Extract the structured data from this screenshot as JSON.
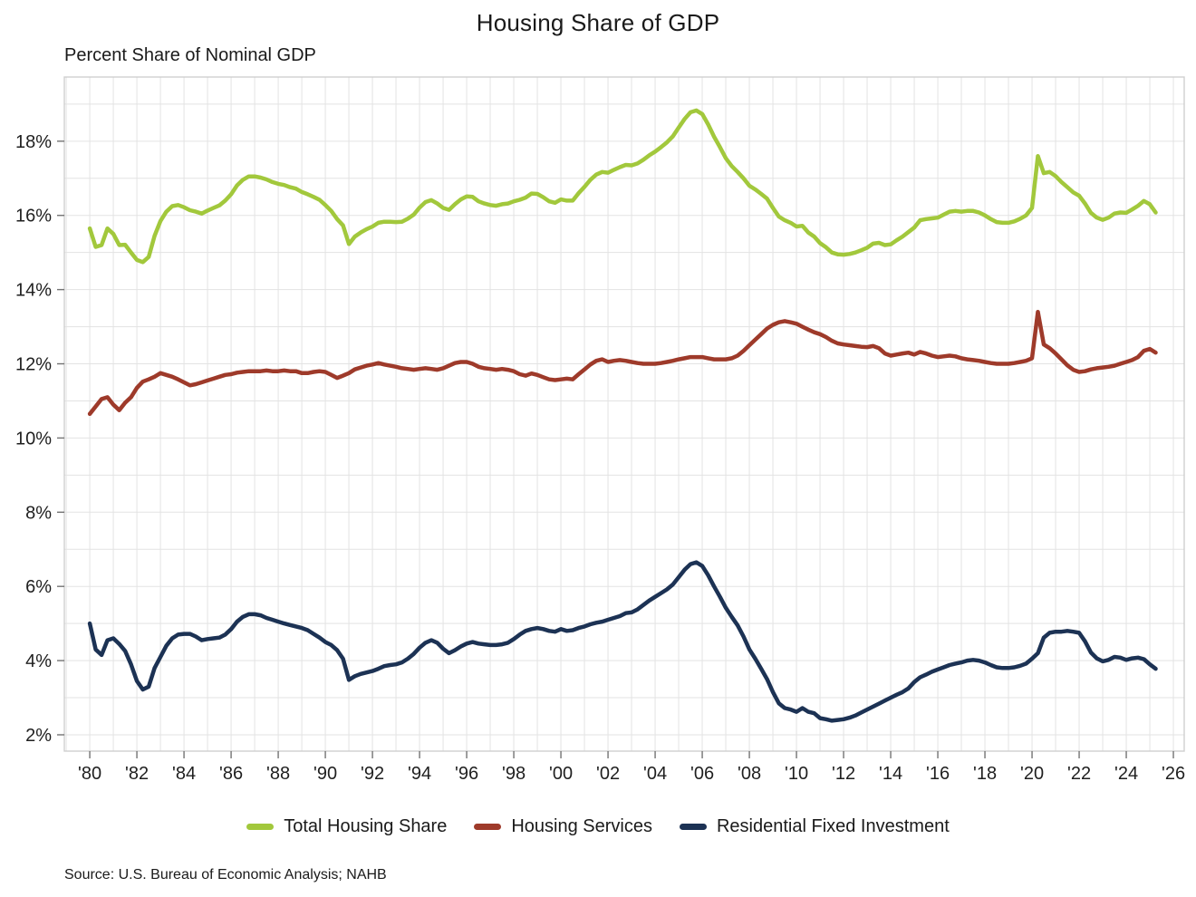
{
  "title": "Housing Share of GDP",
  "subtitle": "Percent Share of Nominal GDP",
  "source": "Source: U.S. Bureau of Economic Analysis; NAHB",
  "legend": [
    {
      "label": "Total Housing Share",
      "color": "#a2c83c"
    },
    {
      "label": "Housing Services",
      "color": "#9e3a2a"
    },
    {
      "label": "Residential Fixed Investment",
      "color": "#1c3254"
    }
  ],
  "chart_data": {
    "type": "line",
    "title": "Housing Share of GDP",
    "ylabel": "Percent Share of Nominal GDP",
    "x_start_year": 1980,
    "points_per_year": 4,
    "x_range": [
      1978.92,
      2026.46
    ],
    "y_range": [
      1.56,
      19.73
    ],
    "grid": "on",
    "legend_position": "bottom",
    "y_ticks": [
      2,
      4,
      6,
      8,
      10,
      12,
      14,
      16,
      18
    ],
    "y_tick_labels": [
      "2%",
      "4%",
      "6%",
      "8%",
      "10%",
      "12%",
      "14%",
      "16%",
      "18%"
    ],
    "x_tick_years": [
      1980,
      1982,
      1984,
      1986,
      1988,
      1990,
      1992,
      1994,
      1996,
      1998,
      2000,
      2002,
      2004,
      2006,
      2008,
      2010,
      2012,
      2014,
      2016,
      2018,
      2020,
      2022,
      2024,
      2026
    ],
    "x_tick_labels": [
      "'80",
      "'82",
      "'84",
      "'86",
      "'88",
      "'90",
      "'92",
      "'94",
      "'96",
      "'98",
      "'00",
      "'02",
      "'04",
      "'06",
      "'08",
      "'10",
      "'12",
      "'14",
      "'16",
      "'18",
      "'20",
      "'22",
      "'24",
      "'26"
    ],
    "series": [
      {
        "name": "Total Housing Share",
        "color": "#a2c83c",
        "values": [
          15.65,
          15.15,
          15.2,
          15.65,
          15.5,
          15.2,
          15.21,
          15.0,
          14.8,
          14.74,
          14.88,
          15.45,
          15.85,
          16.1,
          16.25,
          16.28,
          16.22,
          16.14,
          16.1,
          16.05,
          16.13,
          16.2,
          16.27,
          16.4,
          16.57,
          16.81,
          16.96,
          17.05,
          17.05,
          17.02,
          16.97,
          16.9,
          16.85,
          16.82,
          16.76,
          16.72,
          16.63,
          16.57,
          16.5,
          16.42,
          16.28,
          16.12,
          15.9,
          15.73,
          15.23,
          15.43,
          15.54,
          15.63,
          15.7,
          15.8,
          15.83,
          15.83,
          15.82,
          15.83,
          15.91,
          16.02,
          16.21,
          16.36,
          16.41,
          16.32,
          16.2,
          16.15,
          16.3,
          16.43,
          16.51,
          16.5,
          16.38,
          16.32,
          16.28,
          16.26,
          16.3,
          16.32,
          16.38,
          16.42,
          16.48,
          16.59,
          16.58,
          16.49,
          16.38,
          16.34,
          16.43,
          16.4,
          16.4,
          16.6,
          16.77,
          16.96,
          17.1,
          17.17,
          17.15,
          17.23,
          17.3,
          17.36,
          17.35,
          17.4,
          17.5,
          17.62,
          17.72,
          17.84,
          17.97,
          18.13,
          18.37,
          18.6,
          18.78,
          18.83,
          18.73,
          18.45,
          18.12,
          17.84,
          17.54,
          17.33,
          17.17,
          17.0,
          16.8,
          16.7,
          16.58,
          16.45,
          16.2,
          15.97,
          15.87,
          15.8,
          15.7,
          15.72,
          15.54,
          15.43,
          15.25,
          15.14,
          15.0,
          14.95,
          14.94,
          14.96,
          15.0,
          15.06,
          15.13,
          15.24,
          15.26,
          15.2,
          15.22,
          15.33,
          15.43,
          15.55,
          15.67,
          15.87,
          15.9,
          15.92,
          15.94,
          16.02,
          16.1,
          16.12,
          16.1,
          16.12,
          16.12,
          16.08,
          16.0,
          15.9,
          15.82,
          15.8,
          15.8,
          15.84,
          15.91,
          16.0,
          16.2,
          17.6,
          17.14,
          17.17,
          17.06,
          16.9,
          16.76,
          16.62,
          16.53,
          16.32,
          16.07,
          15.94,
          15.88,
          15.94,
          16.05,
          16.08,
          16.07,
          16.16,
          16.26,
          16.39,
          16.3,
          16.08
        ]
      },
      {
        "name": "Housing Services",
        "color": "#9e3a2a",
        "values": [
          10.65,
          10.85,
          11.05,
          11.1,
          10.9,
          10.75,
          10.95,
          11.1,
          11.35,
          11.52,
          11.58,
          11.65,
          11.75,
          11.7,
          11.65,
          11.58,
          11.5,
          11.42,
          11.45,
          11.5,
          11.55,
          11.6,
          11.65,
          11.7,
          11.72,
          11.76,
          11.78,
          11.8,
          11.8,
          11.8,
          11.82,
          11.8,
          11.8,
          11.82,
          11.8,
          11.8,
          11.75,
          11.75,
          11.78,
          11.8,
          11.78,
          11.7,
          11.62,
          11.68,
          11.75,
          11.85,
          11.9,
          11.95,
          11.98,
          12.02,
          11.98,
          11.95,
          11.92,
          11.88,
          11.86,
          11.84,
          11.86,
          11.88,
          11.86,
          11.84,
          11.88,
          11.95,
          12.02,
          12.05,
          12.05,
          12.0,
          11.92,
          11.88,
          11.86,
          11.84,
          11.86,
          11.84,
          11.8,
          11.72,
          11.68,
          11.74,
          11.7,
          11.64,
          11.58,
          11.56,
          11.58,
          11.6,
          11.58,
          11.72,
          11.85,
          11.98,
          12.08,
          12.12,
          12.05,
          12.08,
          12.1,
          12.08,
          12.05,
          12.02,
          12.0,
          12.0,
          12.0,
          12.02,
          12.05,
          12.08,
          12.12,
          12.15,
          12.18,
          12.18,
          12.18,
          12.15,
          12.12,
          12.12,
          12.12,
          12.15,
          12.22,
          12.35,
          12.5,
          12.65,
          12.8,
          12.95,
          13.05,
          13.12,
          13.15,
          13.12,
          13.08,
          13.0,
          12.92,
          12.85,
          12.8,
          12.72,
          12.62,
          12.55,
          12.52,
          12.5,
          12.48,
          12.46,
          12.45,
          12.48,
          12.42,
          12.28,
          12.22,
          12.25,
          12.28,
          12.3,
          12.25,
          12.32,
          12.28,
          12.22,
          12.18,
          12.2,
          12.22,
          12.2,
          12.15,
          12.12,
          12.1,
          12.08,
          12.05,
          12.02,
          12.0,
          12.0,
          12.0,
          12.02,
          12.05,
          12.08,
          12.15,
          13.4,
          12.52,
          12.42,
          12.28,
          12.12,
          11.96,
          11.84,
          11.78,
          11.8,
          11.85,
          11.88,
          11.9,
          11.92,
          11.95,
          12.0,
          12.05,
          12.1,
          12.18,
          12.35,
          12.4,
          12.3
        ]
      },
      {
        "name": "Residential Fixed Investment",
        "color": "#1c3254",
        "values": [
          5.0,
          4.3,
          4.15,
          4.55,
          4.6,
          4.45,
          4.26,
          3.9,
          3.45,
          3.22,
          3.3,
          3.8,
          4.1,
          4.4,
          4.6,
          4.7,
          4.72,
          4.72,
          4.65,
          4.55,
          4.58,
          4.6,
          4.62,
          4.7,
          4.85,
          5.05,
          5.18,
          5.25,
          5.25,
          5.22,
          5.15,
          5.1,
          5.05,
          5.0,
          4.96,
          4.92,
          4.88,
          4.82,
          4.72,
          4.62,
          4.5,
          4.42,
          4.28,
          4.05,
          3.48,
          3.58,
          3.64,
          3.68,
          3.72,
          3.78,
          3.85,
          3.88,
          3.9,
          3.95,
          4.05,
          4.18,
          4.35,
          4.48,
          4.55,
          4.48,
          4.32,
          4.2,
          4.28,
          4.38,
          4.46,
          4.5,
          4.46,
          4.44,
          4.42,
          4.42,
          4.44,
          4.48,
          4.58,
          4.7,
          4.8,
          4.85,
          4.88,
          4.85,
          4.8,
          4.78,
          4.85,
          4.8,
          4.82,
          4.88,
          4.92,
          4.98,
          5.02,
          5.05,
          5.1,
          5.15,
          5.2,
          5.28,
          5.3,
          5.38,
          5.5,
          5.62,
          5.72,
          5.82,
          5.92,
          6.05,
          6.25,
          6.45,
          6.6,
          6.65,
          6.55,
          6.3,
          6.0,
          5.72,
          5.42,
          5.18,
          4.95,
          4.65,
          4.3,
          4.05,
          3.78,
          3.5,
          3.15,
          2.85,
          2.72,
          2.68,
          2.62,
          2.72,
          2.62,
          2.58,
          2.45,
          2.42,
          2.38,
          2.4,
          2.42,
          2.46,
          2.52,
          2.6,
          2.68,
          2.76,
          2.84,
          2.92,
          3.0,
          3.08,
          3.15,
          3.25,
          3.42,
          3.55,
          3.62,
          3.7,
          3.76,
          3.82,
          3.88,
          3.92,
          3.95,
          4.0,
          4.02,
          4.0,
          3.95,
          3.88,
          3.82,
          3.8,
          3.8,
          3.82,
          3.86,
          3.92,
          4.05,
          4.2,
          4.62,
          4.75,
          4.78,
          4.78,
          4.8,
          4.78,
          4.75,
          4.52,
          4.22,
          4.06,
          3.98,
          4.02,
          4.1,
          4.08,
          4.02,
          4.06,
          4.08,
          4.04,
          3.9,
          3.78
        ]
      }
    ]
  },
  "style": {
    "grid_color": "#e3e3e3",
    "border_color": "#cfcfcf",
    "tick_color": "#737373",
    "label_color": "#1f1f1f",
    "line_width": 4.5
  }
}
